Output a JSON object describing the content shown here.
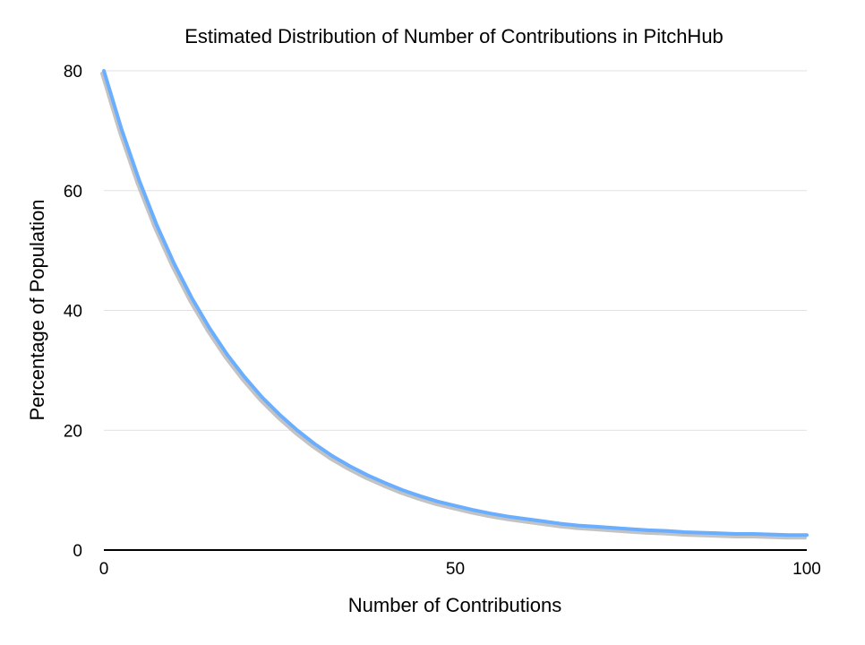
{
  "chart_data": {
    "type": "line",
    "title": "Estimated Distribution of Number of Contributions in PitchHub",
    "xlabel": "Number of Contributions",
    "ylabel": "Percentage of Population",
    "xlim": [
      0,
      100
    ],
    "ylim": [
      0,
      80
    ],
    "x_ticks": [
      "0",
      "50",
      "100"
    ],
    "y_ticks": [
      "0",
      "20",
      "40",
      "60",
      "80"
    ],
    "grid": true,
    "legend": "none",
    "line_color": "#6aaeff",
    "series": [
      {
        "x": [
          0,
          2.5,
          5,
          7.5,
          10,
          12.5,
          15,
          17.5,
          20,
          22.5,
          25,
          27.5,
          30,
          32.5,
          35,
          37.5,
          40,
          42.5,
          45,
          47.5,
          50,
          52.5,
          55,
          57.5,
          60,
          62.5,
          65,
          67.5,
          70,
          72.5,
          75,
          77.5,
          80,
          82.5,
          85,
          87.5,
          90,
          92.5,
          95,
          97.5,
          100
        ],
        "y": [
          80,
          70.3,
          61.8,
          54.3,
          47.8,
          42.1,
          37.1,
          32.7,
          28.9,
          25.5,
          22.6,
          20.0,
          17.7,
          15.7,
          14.0,
          12.5,
          11.2,
          10.0,
          9.0,
          8.1,
          7.4,
          6.7,
          6.1,
          5.6,
          5.2,
          4.8,
          4.4,
          4.1,
          3.9,
          3.7,
          3.5,
          3.3,
          3.2,
          3.0,
          2.9,
          2.8,
          2.7,
          2.7,
          2.6,
          2.5,
          2.5
        ]
      }
    ]
  }
}
